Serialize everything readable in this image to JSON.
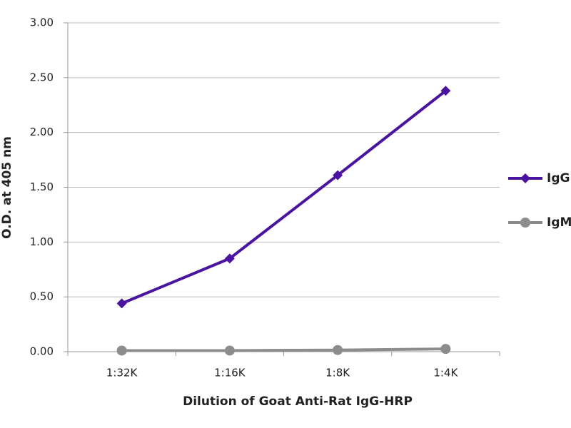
{
  "chart_data": {
    "type": "line",
    "xlabel": "Dilution of Goat Anti-Rat IgG-HRP",
    "ylabel": "O.D. at 405 nm",
    "categories": [
      "1:32K",
      "1:16K",
      "1:8K",
      "1:4K"
    ],
    "series": [
      {
        "name": "IgG",
        "color": "#4b14a0",
        "marker": "diamond",
        "values": [
          0.44,
          0.85,
          1.61,
          2.38
        ]
      },
      {
        "name": "IgM",
        "color": "#8c8c8c",
        "marker": "circle",
        "values": [
          0.01,
          0.01,
          0.015,
          0.025
        ]
      }
    ],
    "ylim": [
      0,
      3
    ],
    "yticks": [
      {
        "value": 0,
        "label": "0.00"
      },
      {
        "value": 0.5,
        "label": "0.50"
      },
      {
        "value": 1,
        "label": "1.00"
      },
      {
        "value": 1.5,
        "label": "1.50"
      },
      {
        "value": 2,
        "label": "2.00"
      },
      {
        "value": 2.5,
        "label": "2.50"
      },
      {
        "value": 3,
        "label": "3.00"
      }
    ],
    "grid": true,
    "legend": "right"
  }
}
